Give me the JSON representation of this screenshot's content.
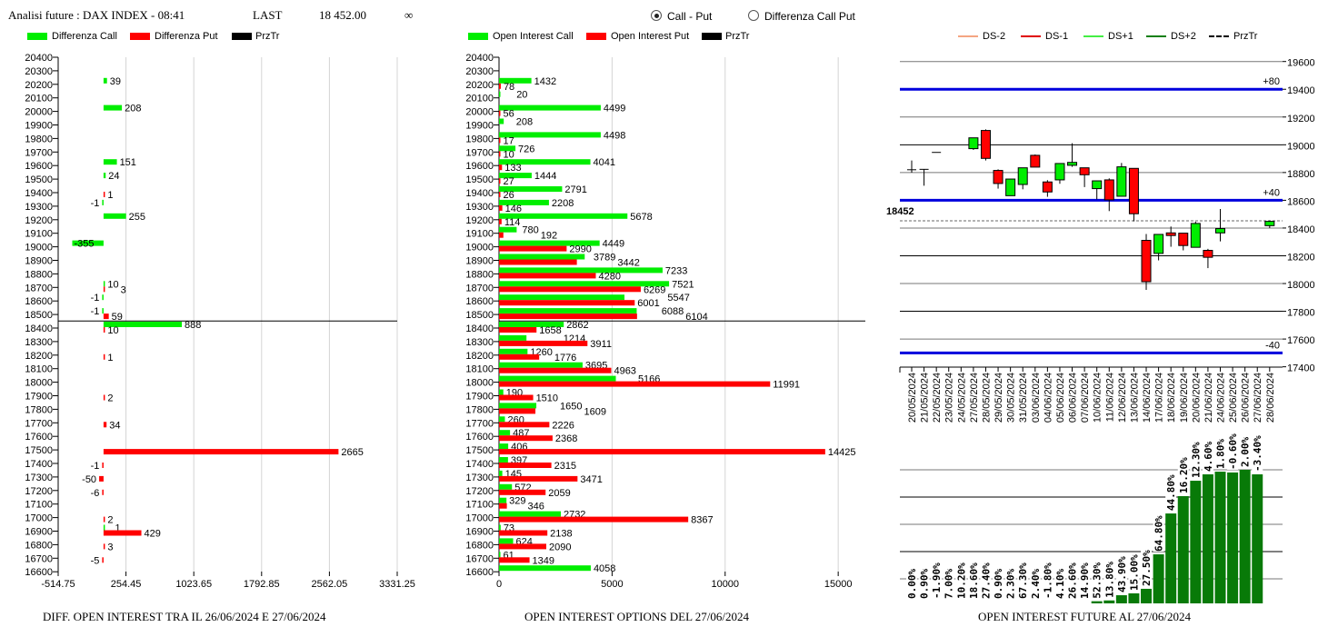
{
  "header": {
    "title": "Analisi future : DAX INDEX - 08:41",
    "last_label": "LAST",
    "last_value": "18 452.00",
    "infinity": "∞"
  },
  "mode": {
    "options": [
      "Call - Put",
      "Differenza Call Put"
    ],
    "selected": "Call - Put"
  },
  "colors": {
    "call": "#00ee00",
    "put": "#ff0000",
    "przTr": "#000000",
    "level": "#0000dd",
    "ds_minus2": "#f4a582",
    "ds_minus1": "#e00000",
    "ds_plus1": "#44ee44",
    "ds_plus2": "#108010",
    "oi_bar": "#087a08"
  },
  "legend_left": [
    "Differenza Call",
    "Differenza Put",
    "PrzTr"
  ],
  "legend_mid": [
    "Open Interest Call",
    "Open Interest Put",
    "PrzTr"
  ],
  "legend_right": [
    "DS-2",
    "DS-1",
    "DS+1",
    "DS+2",
    "PrzTr"
  ],
  "titles": {
    "left": "DIFF. OPEN INTEREST TRA IL 26/06/2024 E 27/06/2024",
    "mid": "OPEN INTEREST OPTIONS DEL 27/06/2024",
    "right": "OPEN INTEREST FUTURE AL 27/06/2024"
  },
  "chart_data": [
    {
      "type": "bar",
      "orientation": "horizontal",
      "title": "DIFF. OPEN INTEREST TRA IL 26/06/2024 E 27/06/2024",
      "categories": [
        "20400",
        "20300",
        "20200",
        "20100",
        "20000",
        "19900",
        "19800",
        "19700",
        "19600",
        "19500",
        "19400",
        "19300",
        "19200",
        "19100",
        "19000",
        "18900",
        "18800",
        "18700",
        "18600",
        "18500",
        "18400",
        "18300",
        "18200",
        "18100",
        "18000",
        "17900",
        "17800",
        "17700",
        "17600",
        "17500",
        "17400",
        "17300",
        "17200",
        "17100",
        "17000",
        "16900",
        "16800",
        "16700",
        "16600"
      ],
      "series": [
        {
          "name": "Differenza Call",
          "values": [
            null,
            null,
            39,
            null,
            208,
            null,
            null,
            null,
            151,
            24,
            null,
            -1,
            255,
            null,
            -355,
            null,
            null,
            10,
            -1,
            -1,
            888,
            null,
            null,
            null,
            null,
            null,
            null,
            null,
            null,
            null,
            null,
            null,
            null,
            null,
            null,
            1,
            null,
            null,
            null
          ]
        },
        {
          "name": "Differenza Put",
          "values": [
            null,
            null,
            null,
            null,
            null,
            null,
            null,
            null,
            null,
            null,
            1,
            null,
            null,
            null,
            null,
            null,
            null,
            3,
            null,
            59,
            10,
            null,
            1,
            null,
            null,
            2,
            null,
            34,
            null,
            2665,
            -1,
            -50,
            -6,
            null,
            2,
            429,
            3,
            -5,
            null
          ]
        }
      ],
      "przTr": 18452,
      "xlim": [
        -514.75,
        3331.25
      ],
      "xticks": [
        "-514.75",
        "254.45",
        "1023.65",
        "1792.85",
        "2562.05",
        "3331.25"
      ],
      "grid": true
    },
    {
      "type": "bar",
      "orientation": "horizontal",
      "title": "OPEN INTEREST OPTIONS DEL 27/06/2024",
      "categories": [
        "20400",
        "20300",
        "20200",
        "20100",
        "20000",
        "19900",
        "19800",
        "19700",
        "19600",
        "19500",
        "19400",
        "19300",
        "19200",
        "19100",
        "19000",
        "18900",
        "18800",
        "18700",
        "18600",
        "18500",
        "18400",
        "18300",
        "18200",
        "18100",
        "18000",
        "17900",
        "17800",
        "17700",
        "17600",
        "17500",
        "17400",
        "17300",
        "17200",
        "17100",
        "17000",
        "16900",
        "16800",
        "16700",
        "16600"
      ],
      "series": [
        {
          "name": "Open Interest Call",
          "values": [
            null,
            null,
            1432,
            20,
            4499,
            208,
            4498,
            726,
            4041,
            1444,
            2791,
            2208,
            5678,
            780,
            4449,
            3789,
            7233,
            7521,
            5547,
            6088,
            2862,
            1214,
            1260,
            3695,
            5166,
            190,
            1650,
            260,
            487,
            406,
            397,
            145,
            572,
            329,
            2732,
            73,
            624,
            61,
            4058
          ]
        },
        {
          "name": "Open Interest Put",
          "values": [
            null,
            null,
            78,
            null,
            56,
            null,
            17,
            10,
            133,
            27,
            26,
            146,
            114,
            192,
            2990,
            3442,
            4280,
            6269,
            6001,
            6104,
            1658,
            3911,
            1776,
            4963,
            11991,
            1510,
            1609,
            2226,
            2368,
            14425,
            2315,
            3471,
            2059,
            346,
            8367,
            2138,
            2090,
            1349,
            null
          ]
        }
      ],
      "przTr": 18452,
      "xlim": [
        0,
        16200
      ],
      "xticks": [
        "0",
        "5000",
        "10000",
        "15000"
      ],
      "grid": true
    },
    {
      "type": "candlestick",
      "ylim": [
        17400,
        19600
      ],
      "yticks": [
        "19600",
        "19400",
        "19200",
        "19000",
        "18800",
        "18600",
        "18400",
        "18200",
        "18000",
        "17800",
        "17600",
        "17400"
      ],
      "dates": [
        "20/05/2024",
        "21/05/2024",
        "22/05/2024",
        "23/05/2024",
        "24/05/2024",
        "27/05/2024",
        "28/05/2024",
        "29/05/2024",
        "30/05/2024",
        "31/05/2024",
        "03/06/2024",
        "04/06/2024",
        "05/06/2024",
        "06/06/2024",
        "07/06/2024",
        "10/06/2024",
        "11/06/2024",
        "12/06/2024",
        "13/06/2024",
        "14/06/2024",
        "17/06/2024",
        "18/06/2024",
        "19/06/2024",
        "20/06/2024",
        "21/06/2024",
        "24/06/2024",
        "25/06/2024",
        "26/06/2024",
        "27/06/2024",
        "28/06/2024"
      ],
      "candles": [
        {
          "date": "20/05/2024",
          "open": 18820,
          "high": 18887,
          "low": 18799,
          "close": 18820
        },
        {
          "date": "21/05/2024",
          "open": 18823,
          "high": 18823,
          "low": 18705,
          "close": 18823
        },
        {
          "date": "22/05/2024",
          "open": 18945,
          "high": 18945,
          "low": 18945,
          "close": 18945
        },
        {
          "date": "27/05/2024",
          "open": 18972,
          "high": 19050,
          "low": 18963,
          "close": 19050
        },
        {
          "date": "28/05/2024",
          "open": 19103,
          "high": 19111,
          "low": 18887,
          "close": 18902
        },
        {
          "date": "29/05/2024",
          "open": 18815,
          "high": 18823,
          "low": 18684,
          "close": 18721
        },
        {
          "date": "30/05/2024",
          "open": 18633,
          "high": 18753,
          "low": 18633,
          "close": 18753
        },
        {
          "date": "31/05/2024",
          "open": 18714,
          "high": 18834,
          "low": 18679,
          "close": 18834
        },
        {
          "date": "03/06/2024",
          "open": 18924,
          "high": 18930,
          "low": 18839,
          "close": 18839
        },
        {
          "date": "04/06/2024",
          "open": 18732,
          "high": 18745,
          "low": 18625,
          "close": 18660
        },
        {
          "date": "05/06/2024",
          "open": 18747,
          "high": 18865,
          "low": 18719,
          "close": 18865
        },
        {
          "date": "06/06/2024",
          "open": 18852,
          "high": 19011,
          "low": 18841,
          "close": 18873
        },
        {
          "date": "07/06/2024",
          "open": 18834,
          "high": 18834,
          "low": 18695,
          "close": 18784
        },
        {
          "date": "10/06/2024",
          "open": 18684,
          "high": 18740,
          "low": 18607,
          "close": 18740
        },
        {
          "date": "11/06/2024",
          "open": 18747,
          "high": 18758,
          "low": 18522,
          "close": 18603
        },
        {
          "date": "12/06/2024",
          "open": 18629,
          "high": 18869,
          "low": 18629,
          "close": 18841
        },
        {
          "date": "13/06/2024",
          "open": 18830,
          "high": 18830,
          "low": 18448,
          "close": 18503
        },
        {
          "date": "14/06/2024",
          "open": 18311,
          "high": 18357,
          "low": 17954,
          "close": 18013
        },
        {
          "date": "17/06/2024",
          "open": 18217,
          "high": 18354,
          "low": 18167,
          "close": 18354
        },
        {
          "date": "18/06/2024",
          "open": 18365,
          "high": 18411,
          "low": 18265,
          "close": 18346
        },
        {
          "date": "19/06/2024",
          "open": 18363,
          "high": 18363,
          "low": 18239,
          "close": 18274
        },
        {
          "date": "20/06/2024",
          "open": 18261,
          "high": 18446,
          "low": 18261,
          "close": 18433
        },
        {
          "date": "21/06/2024",
          "open": 18239,
          "high": 18250,
          "low": 18111,
          "close": 18189
        },
        {
          "date": "24/06/2024",
          "open": 18365,
          "high": 18537,
          "low": 18304,
          "close": 18396
        },
        {
          "date": "28/06/2024",
          "open": 18417,
          "high": 18455,
          "low": 18400,
          "close": 18448
        }
      ],
      "levels": [
        {
          "value": 19400,
          "label": "+80"
        },
        {
          "value": 18600,
          "label": "+40"
        },
        {
          "value": 17500,
          "label": "-40"
        }
      ],
      "przTr": 18452,
      "przTr_label": "18452",
      "grid": true,
      "legend": "top"
    },
    {
      "type": "bar",
      "title": "OPEN INTEREST FUTURE AL 27/06/2024",
      "categories": [
        "20/05/2024",
        "21/05/2024",
        "22/05/2024",
        "23/05/2024",
        "24/05/2024",
        "27/05/2024",
        "28/05/2024",
        "29/05/2024",
        "30/05/2024",
        "31/05/2024",
        "03/06/2024",
        "04/06/2024",
        "05/06/2024",
        "06/06/2024",
        "07/06/2024",
        "10/06/2024",
        "11/06/2024",
        "12/06/2024",
        "13/06/2024",
        "14/06/2024",
        "17/06/2024",
        "18/06/2024",
        "19/06/2024",
        "20/06/2024",
        "21/06/2024",
        "24/06/2024",
        "25/06/2024",
        "26/06/2024",
        "27/06/2024"
      ],
      "oi_relative": [
        0,
        0,
        0,
        0,
        0,
        0,
        0,
        0,
        0,
        0,
        0,
        0,
        0,
        0,
        0,
        1.6,
        2.2,
        6.1,
        7.5,
        10.9,
        36.7,
        67.3,
        80.3,
        91.8,
        96.6,
        98.6,
        98.0,
        100,
        96.6
      ],
      "labels": [
        "0.00%",
        "0.90%",
        "-1.90%",
        "7.00%",
        "10.20%",
        "18.60%",
        "27.40%",
        "0.90%",
        "2.30%",
        "67.30%",
        "2.40%",
        "-1.80%",
        "4.10%",
        "26.60%",
        "14.90%",
        "52.30%",
        "13.80%",
        "43.90%",
        "15.00%",
        "27.50%",
        "64.80%",
        "44.80%",
        "16.20%",
        "12.30%",
        "4.60%",
        "1.80%",
        "-0.60%",
        "2.00%",
        "-3.40%"
      ],
      "grid": true
    }
  ]
}
